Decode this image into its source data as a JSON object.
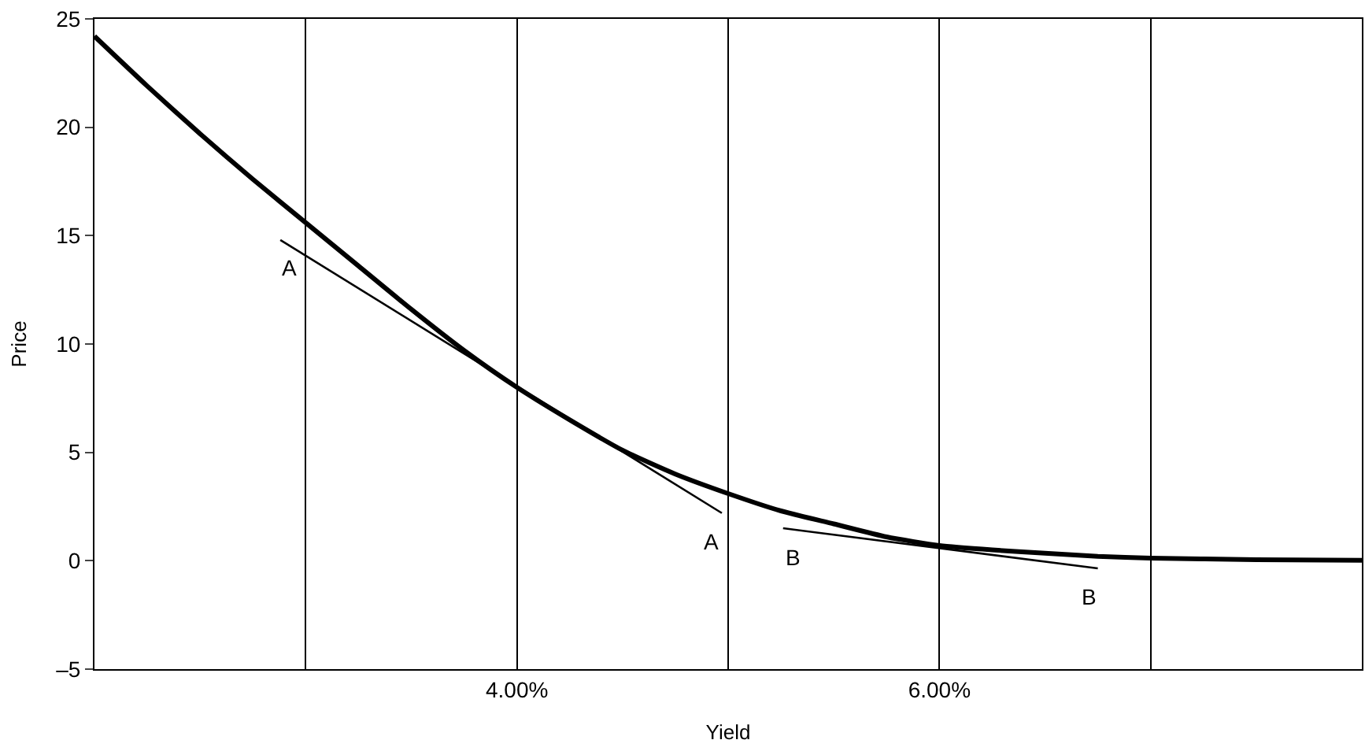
{
  "chart_data": {
    "type": "line",
    "xlabel": "Yield",
    "ylabel": "Price",
    "xlim": [
      2,
      8
    ],
    "xticks": [
      {
        "value": 3,
        "label": null
      },
      {
        "value": 4,
        "label": "4.00%"
      },
      {
        "value": 5,
        "label": null
      },
      {
        "value": 6,
        "label": "6.00%"
      },
      {
        "value": 7,
        "label": null
      }
    ],
    "ylim": [
      -5,
      25
    ],
    "yticks": [
      {
        "value": -5,
        "label": "–5"
      },
      0,
      5,
      10,
      15,
      20,
      25
    ],
    "grid": "x",
    "legend": false,
    "marker": "none",
    "line_style": "solid",
    "series": [
      {
        "color": "#000000",
        "x": [
          2.0,
          2.25,
          2.5,
          2.75,
          3.0,
          3.25,
          3.5,
          3.75,
          4.0,
          4.25,
          4.5,
          4.75,
          5.0,
          5.25,
          5.5,
          5.75,
          6.0,
          6.25,
          6.5,
          6.75,
          7.0,
          7.5,
          8.0
        ],
        "values": [
          24.2,
          21.9,
          19.7,
          17.6,
          15.6,
          13.6,
          11.6,
          9.7,
          8.0,
          6.5,
          5.1,
          4.0,
          3.1,
          2.3,
          1.7,
          1.1,
          0.7,
          0.5,
          0.35,
          0.2,
          0.12,
          0.05,
          0.02
        ]
      },
      {
        "name": "A",
        "color": "#000000",
        "x": [
          2.88,
          4.97
        ],
        "values": [
          14.8,
          2.2
        ]
      },
      {
        "name": "B",
        "color": "#000000",
        "x": [
          5.26,
          6.75
        ],
        "values": [
          1.5,
          -0.35
        ]
      }
    ]
  }
}
